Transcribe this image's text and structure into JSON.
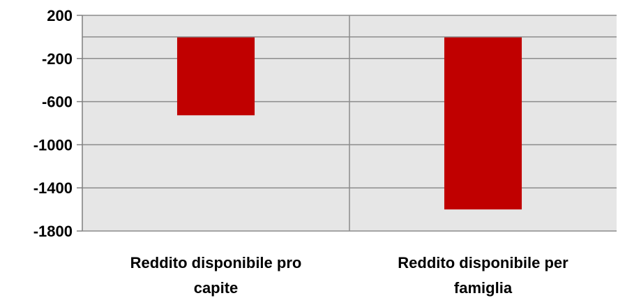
{
  "chart_data": {
    "type": "bar",
    "categories": [
      [
        "Reddito disponibile pro",
        "capite"
      ],
      [
        "Reddito disponibile per",
        "famiglia"
      ]
    ],
    "values": [
      -727,
      -1600
    ],
    "ylim": [
      -1800,
      200
    ],
    "yticks": [
      200,
      -200,
      -600,
      -1000,
      -1400,
      -1800
    ],
    "ytick_labels": [
      "200",
      "-200",
      "-600",
      "-1000",
      "-1400",
      "-1800"
    ],
    "grid": true,
    "colors": {
      "bar": "#C00000",
      "plot_background": "#E6E6E6",
      "gridline": "#8C8C8C",
      "axis": "#7F7F7F"
    }
  }
}
